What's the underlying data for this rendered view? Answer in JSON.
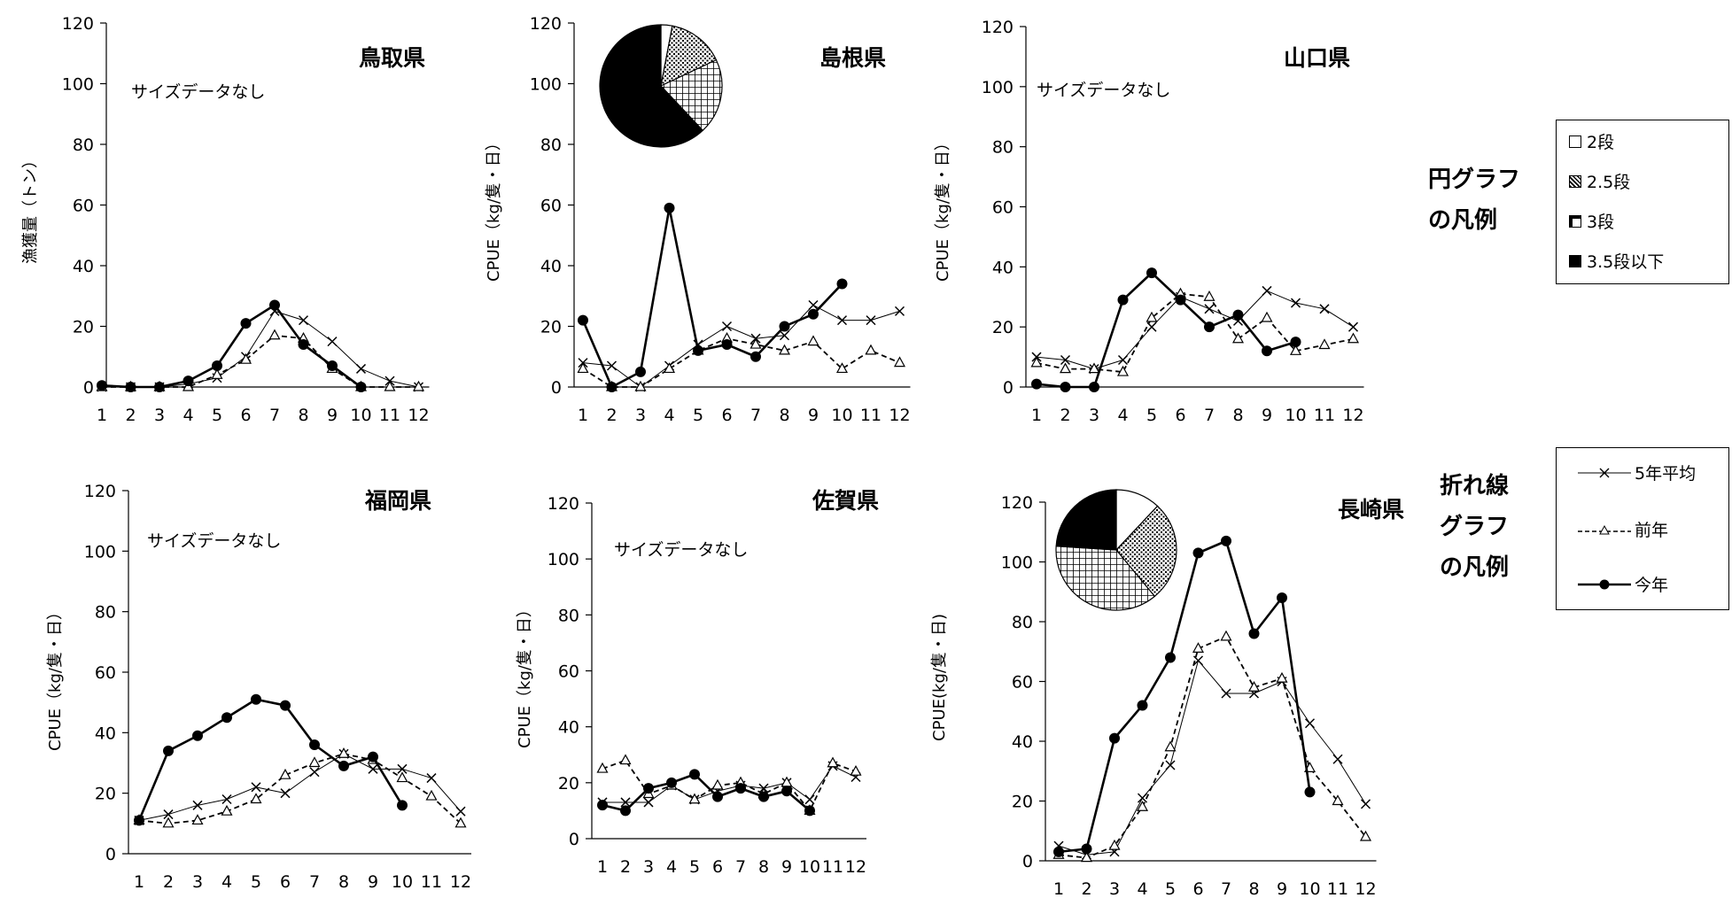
{
  "chart_data": [
    {
      "type": "line",
      "title": "鳥取県",
      "note": "サイズデータなし",
      "ylabel": "漁獲量（トン）",
      "ylim": [
        0,
        120
      ],
      "yticks": [
        0,
        20,
        40,
        60,
        80,
        100,
        120
      ],
      "x": [
        1,
        2,
        3,
        4,
        5,
        6,
        7,
        8,
        9,
        10,
        11,
        12
      ],
      "series": [
        {
          "name": "5年平均",
          "values": [
            0,
            0,
            0,
            1,
            3,
            10,
            25,
            22,
            15,
            6,
            2,
            0
          ]
        },
        {
          "name": "前年",
          "values": [
            0,
            0,
            0,
            0,
            4,
            9,
            17,
            16,
            6,
            0,
            0,
            0
          ]
        },
        {
          "name": "今年",
          "values": [
            0.5,
            0,
            0,
            2,
            7,
            21,
            27,
            14,
            7,
            0,
            null,
            null
          ]
        }
      ]
    },
    {
      "type": "line",
      "title": "島根県",
      "ylabel": "CPUE（kg/隻・日）",
      "ylim": [
        0,
        120
      ],
      "yticks": [
        0,
        20,
        40,
        60,
        80,
        100,
        120
      ],
      "x": [
        1,
        2,
        3,
        4,
        5,
        6,
        7,
        8,
        9,
        10,
        11,
        12
      ],
      "series": [
        {
          "name": "5年平均",
          "values": [
            8,
            7,
            0,
            7,
            14,
            20,
            16,
            17,
            27,
            22,
            22,
            25
          ]
        },
        {
          "name": "前年",
          "values": [
            6,
            0,
            0,
            6,
            12,
            16,
            14,
            12,
            15,
            6,
            12,
            8
          ]
        },
        {
          "name": "今年",
          "values": [
            22,
            0,
            5,
            59,
            12,
            14,
            10,
            20,
            24,
            34,
            null,
            null
          ]
        }
      ],
      "pie": {
        "2段": 3,
        "2.5段": 15,
        "3段": 20,
        "3.5段以下": 62
      }
    },
    {
      "type": "line",
      "title": "山口県",
      "note": "サイズデータなし",
      "ylabel": "CPUE（kg/隻・日）",
      "ylim": [
        0,
        120
      ],
      "yticks": [
        0,
        20,
        40,
        60,
        80,
        100,
        120
      ],
      "x": [
        1,
        2,
        3,
        4,
        5,
        6,
        7,
        8,
        9,
        10,
        11,
        12
      ],
      "series": [
        {
          "name": "5年平均",
          "values": [
            10,
            9,
            6,
            9,
            20,
            30,
            26,
            22,
            32,
            28,
            26,
            20
          ]
        },
        {
          "name": "前年",
          "values": [
            8,
            6,
            6,
            5,
            23,
            31,
            30,
            16,
            23,
            12,
            14,
            16
          ]
        },
        {
          "name": "今年",
          "values": [
            1,
            0,
            0,
            29,
            38,
            29,
            20,
            24,
            12,
            15,
            null,
            null
          ]
        }
      ]
    },
    {
      "type": "line",
      "title": "福岡県",
      "note": "サイズデータなし",
      "ylabel": "CPUE（kg/隻・日）",
      "ylim": [
        0,
        120
      ],
      "yticks": [
        0,
        20,
        40,
        60,
        80,
        100,
        120
      ],
      "x": [
        1,
        2,
        3,
        4,
        5,
        6,
        7,
        8,
        9,
        10,
        11,
        12
      ],
      "series": [
        {
          "name": "5年平均",
          "values": [
            11,
            13,
            16,
            18,
            22,
            20,
            27,
            33,
            28,
            28,
            25,
            14
          ]
        },
        {
          "name": "前年",
          "values": [
            11,
            10,
            11,
            14,
            18,
            26,
            30,
            33,
            31,
            25,
            19,
            10
          ]
        },
        {
          "name": "今年",
          "values": [
            11,
            34,
            39,
            45,
            51,
            49,
            36,
            29,
            32,
            16,
            null,
            null
          ]
        }
      ]
    },
    {
      "type": "line",
      "title": "佐賀県",
      "note": "サイズデータなし",
      "ylabel": "CPUE（kg/隻・日）",
      "ylim": [
        0,
        120
      ],
      "yticks": [
        0,
        20,
        40,
        60,
        80,
        100,
        120
      ],
      "x": [
        1,
        2,
        3,
        4,
        5,
        6,
        7,
        8,
        9,
        10,
        11,
        12
      ],
      "series": [
        {
          "name": "5年平均",
          "values": [
            13,
            13,
            13,
            19,
            14,
            17,
            19,
            18,
            20,
            14,
            26,
            22
          ]
        },
        {
          "name": "前年",
          "values": [
            25,
            28,
            16,
            19,
            14,
            19,
            20,
            16,
            20,
            10,
            27,
            24
          ]
        },
        {
          "name": "今年",
          "values": [
            12,
            10,
            18,
            20,
            23,
            15,
            18,
            15,
            17,
            10,
            null,
            null
          ]
        }
      ]
    },
    {
      "type": "line",
      "title": "長崎県",
      "ylabel": "CPUE(kg/隻・日)",
      "ylim": [
        0,
        120
      ],
      "yticks": [
        0,
        20,
        40,
        60,
        80,
        100,
        120
      ],
      "x": [
        1,
        2,
        3,
        4,
        5,
        6,
        7,
        8,
        9,
        10,
        11,
        12
      ],
      "series": [
        {
          "name": "5年平均",
          "values": [
            5,
            2,
            3,
            21,
            32,
            67,
            56,
            56,
            60,
            46,
            34,
            19
          ]
        },
        {
          "name": "前年",
          "values": [
            2,
            1,
            5,
            18,
            38,
            71,
            75,
            58,
            61,
            31,
            20,
            8
          ]
        },
        {
          "name": "今年",
          "values": [
            3,
            4,
            41,
            52,
            68,
            103,
            107,
            76,
            88,
            23,
            null,
            null
          ]
        }
      ],
      "pie": {
        "2段": 12,
        "2.5段": 27,
        "3段": 37,
        "3.5段以下": 24
      }
    }
  ],
  "pie_legend": {
    "title": "円グラフの凡例",
    "title_lines": [
      "円グラフ",
      "の凡例"
    ],
    "items": [
      {
        "label": "2段",
        "pattern": "white"
      },
      {
        "label": "2.5段",
        "pattern": "dots"
      },
      {
        "label": "3段",
        "pattern": "grid"
      },
      {
        "label": "3.5段以下",
        "pattern": "black"
      }
    ]
  },
  "line_legend": {
    "title": "折れ線グラフの凡例",
    "title_lines": [
      "折れ線",
      "グラフ",
      "の凡例"
    ],
    "items": [
      {
        "label": "5年平均",
        "style": "thin-x"
      },
      {
        "label": "前年",
        "style": "dashed-triangle"
      },
      {
        "label": "今年",
        "style": "bold-circle"
      }
    ]
  }
}
